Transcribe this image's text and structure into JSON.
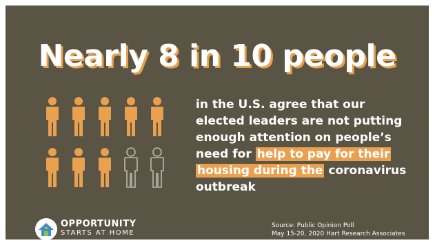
{
  "headline": "Nearly 8 in 10 people",
  "body": {
    "part1": "in the U.S. agree that our elected leaders are not putting enough attention on people’s need for ",
    "highlight": "help to pay for their housing during the",
    "part2": " coronavirus outbreak"
  },
  "people_icons": {
    "filled": 8,
    "total": 10,
    "filled_color": "#e9a04f",
    "outline_color": "#bdb8ad",
    "icon": "person-icon"
  },
  "brand": {
    "line1": "OPPORTUNITY",
    "line2": "STARTS AT HOME",
    "logo_icon": "house-logo-icon"
  },
  "source": {
    "line1": "Source: Public Opinion Poll",
    "line2": "May 15-20, 2020 Hart Research Associates"
  },
  "colors": {
    "background": "#5a5445",
    "accent": "#e9a04f",
    "text": "#ffffff"
  }
}
